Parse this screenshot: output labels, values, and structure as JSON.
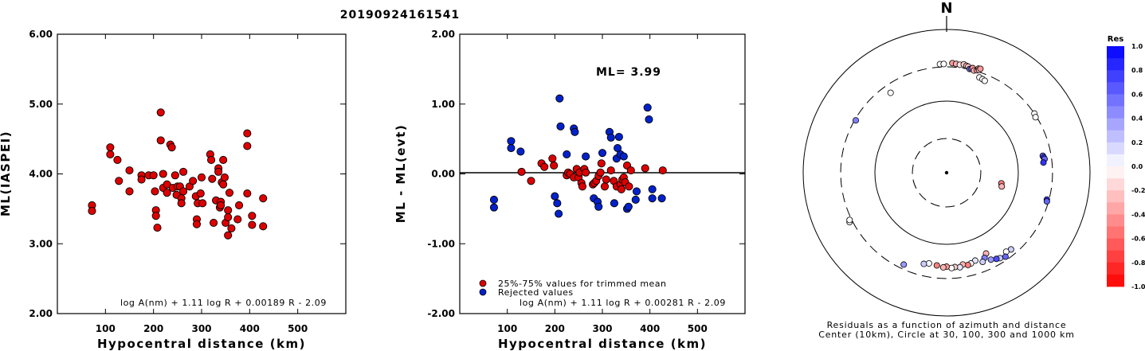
{
  "title": "20190924161541",
  "chart_data": [
    {
      "type": "scatter",
      "panel": "ml-vs-distance",
      "xlabel": "Hypocentral distance (km)",
      "ylabel": "ML(IASPEI)",
      "xlim": [
        0,
        600
      ],
      "ylim": [
        2.0,
        6.0
      ],
      "xticks": [
        "100",
        "200",
        "300",
        "400",
        "500"
      ],
      "yticks": [
        "2.00",
        "3.00",
        "4.00",
        "5.00",
        "6.00"
      ],
      "formula": "log A(nm) + 1.11 log R + 0.00189 R - 2.09",
      "point_color": "#dd0000",
      "points": [
        [
          72,
          3.55
        ],
        [
          72,
          3.47
        ],
        [
          110,
          4.38
        ],
        [
          110,
          4.28
        ],
        [
          125,
          4.2
        ],
        [
          128,
          3.9
        ],
        [
          150,
          4.05
        ],
        [
          150,
          3.75
        ],
        [
          175,
          3.98
        ],
        [
          175,
          3.92
        ],
        [
          190,
          3.98
        ],
        [
          200,
          3.98
        ],
        [
          203,
          3.75
        ],
        [
          205,
          3.48
        ],
        [
          205,
          3.4
        ],
        [
          208,
          3.23
        ],
        [
          215,
          4.88
        ],
        [
          215,
          4.48
        ],
        [
          220,
          3.8
        ],
        [
          220,
          4.0
        ],
        [
          228,
          3.85
        ],
        [
          228,
          3.73
        ],
        [
          235,
          4.42
        ],
        [
          238,
          4.38
        ],
        [
          240,
          3.8
        ],
        [
          245,
          3.98
        ],
        [
          248,
          3.7
        ],
        [
          250,
          3.82
        ],
        [
          255,
          3.82
        ],
        [
          258,
          3.65
        ],
        [
          258,
          3.58
        ],
        [
          262,
          3.75
        ],
        [
          262,
          4.03
        ],
        [
          275,
          3.82
        ],
        [
          282,
          3.9
        ],
        [
          288,
          3.68
        ],
        [
          290,
          3.35
        ],
        [
          290,
          3.28
        ],
        [
          292,
          3.58
        ],
        [
          298,
          3.72
        ],
        [
          300,
          3.95
        ],
        [
          302,
          3.58
        ],
        [
          318,
          4.28
        ],
        [
          320,
          4.2
        ],
        [
          322,
          3.93
        ],
        [
          325,
          3.3
        ],
        [
          330,
          3.62
        ],
        [
          335,
          4.08
        ],
        [
          335,
          4.03
        ],
        [
          338,
          3.52
        ],
        [
          340,
          3.6
        ],
        [
          340,
          3.55
        ],
        [
          342,
          3.88
        ],
        [
          345,
          4.2
        ],
        [
          345,
          3.85
        ],
        [
          348,
          3.95
        ],
        [
          350,
          3.3
        ],
        [
          355,
          3.48
        ],
        [
          355,
          3.38
        ],
        [
          355,
          3.12
        ],
        [
          358,
          3.73
        ],
        [
          362,
          3.22
        ],
        [
          375,
          3.35
        ],
        [
          378,
          3.55
        ],
        [
          395,
          4.58
        ],
        [
          395,
          4.4
        ],
        [
          395,
          3.72
        ],
        [
          405,
          3.4
        ],
        [
          405,
          3.27
        ],
        [
          428,
          3.65
        ],
        [
          428,
          3.25
        ]
      ]
    },
    {
      "type": "scatter",
      "panel": "residual-vs-distance",
      "xlabel": "Hypocentral distance (km)",
      "ylabel": "ML - ML(evt)",
      "xlim": [
        0,
        600
      ],
      "ylim": [
        -2.0,
        2.0
      ],
      "xticks": [
        "100",
        "200",
        "300",
        "400",
        "500"
      ],
      "yticks": [
        "-2.00",
        "-1.00",
        "0.00",
        "1.00",
        "2.00"
      ],
      "ml_label": "ML= 3.99",
      "formula": "log A(nm) + 1.11 log R + 0.00281 R - 2.09",
      "legend": [
        {
          "label": "25%-75% values for trimmed mean",
          "color": "#dd0000"
        },
        {
          "label": "Rejected values",
          "color": "#0022cc"
        }
      ],
      "used_points": [
        [
          130,
          0.03
        ],
        [
          150,
          -0.1
        ],
        [
          172,
          0.15
        ],
        [
          178,
          0.1
        ],
        [
          195,
          0.22
        ],
        [
          198,
          0.12
        ],
        [
          225,
          -0.02
        ],
        [
          228,
          0.02
        ],
        [
          232,
          0.0
        ],
        [
          240,
          -0.05
        ],
        [
          246,
          0.07
        ],
        [
          250,
          -0.05
        ],
        [
          252,
          0.02
        ],
        [
          256,
          -0.13
        ],
        [
          258,
          -0.18
        ],
        [
          262,
          0.07
        ],
        [
          265,
          0.02
        ],
        [
          280,
          -0.15
        ],
        [
          283,
          -0.13
        ],
        [
          287,
          -0.1
        ],
        [
          292,
          -0.03
        ],
        [
          296,
          0.02
        ],
        [
          298,
          0.15
        ],
        [
          305,
          -0.18
        ],
        [
          308,
          -0.08
        ],
        [
          318,
          0.05
        ],
        [
          324,
          -0.1
        ],
        [
          330,
          -0.18
        ],
        [
          338,
          -0.15
        ],
        [
          340,
          -0.22
        ],
        [
          342,
          -0.08
        ],
        [
          345,
          -0.05
        ],
        [
          348,
          -0.12
        ],
        [
          352,
          0.12
        ],
        [
          356,
          -0.18
        ],
        [
          360,
          0.05
        ],
        [
          390,
          0.08
        ],
        [
          427,
          0.05
        ]
      ],
      "rejected_points": [
        [
          72,
          -0.37
        ],
        [
          72,
          -0.48
        ],
        [
          108,
          0.47
        ],
        [
          108,
          0.37
        ],
        [
          128,
          0.32
        ],
        [
          200,
          -0.32
        ],
        [
          205,
          -0.42
        ],
        [
          208,
          -0.57
        ],
        [
          210,
          1.08
        ],
        [
          212,
          0.68
        ],
        [
          225,
          0.28
        ],
        [
          240,
          0.65
        ],
        [
          242,
          0.6
        ],
        [
          265,
          0.25
        ],
        [
          282,
          -0.35
        ],
        [
          290,
          -0.4
        ],
        [
          292,
          -0.47
        ],
        [
          300,
          0.3
        ],
        [
          315,
          0.6
        ],
        [
          318,
          0.52
        ],
        [
          325,
          -0.42
        ],
        [
          330,
          0.22
        ],
        [
          332,
          0.37
        ],
        [
          335,
          0.53
        ],
        [
          338,
          0.28
        ],
        [
          345,
          0.25
        ],
        [
          352,
          -0.5
        ],
        [
          355,
          -0.47
        ],
        [
          370,
          -0.37
        ],
        [
          372,
          -0.25
        ],
        [
          395,
          0.95
        ],
        [
          398,
          0.78
        ],
        [
          405,
          -0.35
        ],
        [
          405,
          -0.22
        ],
        [
          425,
          -0.35
        ]
      ]
    },
    {
      "type": "polar-scatter",
      "panel": "residual-azimuth-distance",
      "north_label": "N",
      "caption_line1": "Residuals as a function of azimuth and distance",
      "caption_line2": "Center (10km), Circle at 30, 100, 300 and 1000 km",
      "rings_km": [
        {
          "km": 30,
          "dashed": true
        },
        {
          "km": 100,
          "dashed": false
        },
        {
          "km": 300,
          "dashed": true
        },
        {
          "km": 1000,
          "dashed": false
        }
      ],
      "colorbar": {
        "title": "Res",
        "min": -1.0,
        "max": 1.0,
        "ticks": [
          "1.0",
          "0.8",
          "0.6",
          "0.4",
          "0.2",
          "0.0",
          "-0.2",
          "-0.4",
          "-0.6",
          "-0.8",
          "-1.0"
        ],
        "positive_color": "#0000ff",
        "negative_color": "#ff0000"
      },
      "stations": [
        {
          "az": 356.5,
          "dist": 330,
          "res": 0.0
        },
        {
          "az": 358.5,
          "dist": 330,
          "res": 0.0
        },
        {
          "az": 3,
          "dist": 340,
          "res": -0.4
        },
        {
          "az": 5,
          "dist": 335,
          "res": -0.3
        },
        {
          "az": 7,
          "dist": 330,
          "res": -0.1
        },
        {
          "az": 9,
          "dist": 340,
          "res": -0.2
        },
        {
          "az": 10.5,
          "dist": 330,
          "res": -0.3
        },
        {
          "az": 11.5,
          "dist": 325,
          "res": -0.2
        },
        {
          "az": 12.5,
          "dist": 305,
          "res": 0.6
        },
        {
          "az": 13.5,
          "dist": 310,
          "res": 0.4
        },
        {
          "az": 14,
          "dist": 320,
          "res": -0.4
        },
        {
          "az": 15,
          "dist": 300,
          "res": -0.3
        },
        {
          "az": 16.5,
          "dist": 310,
          "res": -0.4
        },
        {
          "az": 17,
          "dist": 330,
          "res": -0.3
        },
        {
          "az": 17.5,
          "dist": 320,
          "res": -0.2
        },
        {
          "az": 18,
          "dist": 335,
          "res": -0.4
        },
        {
          "az": 19,
          "dist": 255,
          "res": 0.0
        },
        {
          "az": 21,
          "dist": 250,
          "res": 0.0
        },
        {
          "az": 22.5,
          "dist": 245,
          "res": 0.0
        },
        {
          "az": 56,
          "dist": 300,
          "res": 0.0
        },
        {
          "az": 58,
          "dist": 290,
          "res": 0.0
        },
        {
          "az": 80,
          "dist": 230,
          "res": 0.6
        },
        {
          "az": 81,
          "dist": 235,
          "res": 0.8
        },
        {
          "az": 82,
          "dist": 240,
          "res": 0.6
        },
        {
          "az": 84,
          "dist": 228,
          "res": 0.8
        },
        {
          "az": 101,
          "dist": 60,
          "res": -0.5
        },
        {
          "az": 104,
          "dist": 62,
          "res": -0.3
        },
        {
          "az": 105,
          "dist": 280,
          "res": 0.8
        },
        {
          "az": 106,
          "dist": 285,
          "res": 0.6
        },
        {
          "az": 140,
          "dist": 250,
          "res": 0.2
        },
        {
          "az": 143,
          "dist": 240,
          "res": 0.0
        },
        {
          "az": 145,
          "dist": 270,
          "res": 0.6
        },
        {
          "az": 148,
          "dist": 255,
          "res": 0.2
        },
        {
          "az": 150,
          "dist": 245,
          "res": 0.7
        },
        {
          "az": 153,
          "dist": 230,
          "res": 0.4
        },
        {
          "az": 154,
          "dist": 180,
          "res": -0.3
        },
        {
          "az": 156,
          "dist": 200,
          "res": 0.5
        },
        {
          "az": 158,
          "dist": 220,
          "res": 0.2
        },
        {
          "az": 162,
          "dist": 195,
          "res": 0.1
        },
        {
          "az": 165,
          "dist": 205,
          "res": 0.0
        },
        {
          "az": 167,
          "dist": 210,
          "res": -0.5
        },
        {
          "az": 170,
          "dist": 200,
          "res": -0.3
        },
        {
          "az": 172,
          "dist": 215,
          "res": 0.1
        },
        {
          "az": 175,
          "dist": 210,
          "res": -0.2
        },
        {
          "az": 177,
          "dist": 215,
          "res": 0.0
        },
        {
          "az": 180,
          "dist": 205,
          "res": -0.4
        },
        {
          "az": 182,
          "dist": 210,
          "res": -0.3
        },
        {
          "az": 186,
          "dist": 200,
          "res": -0.5
        },
        {
          "az": 191,
          "dist": 195,
          "res": 0.0
        },
        {
          "az": 194,
          "dist": 205,
          "res": 0.2
        },
        {
          "az": 205,
          "dist": 260,
          "res": 0.4
        },
        {
          "az": 243,
          "dist": 330,
          "res": 0.0
        },
        {
          "az": 244,
          "dist": 320,
          "res": 0.0
        },
        {
          "az": 300,
          "dist": 290,
          "res": 0.5
        },
        {
          "az": 325,
          "dist": 230,
          "res": 0.0
        }
      ]
    }
  ]
}
